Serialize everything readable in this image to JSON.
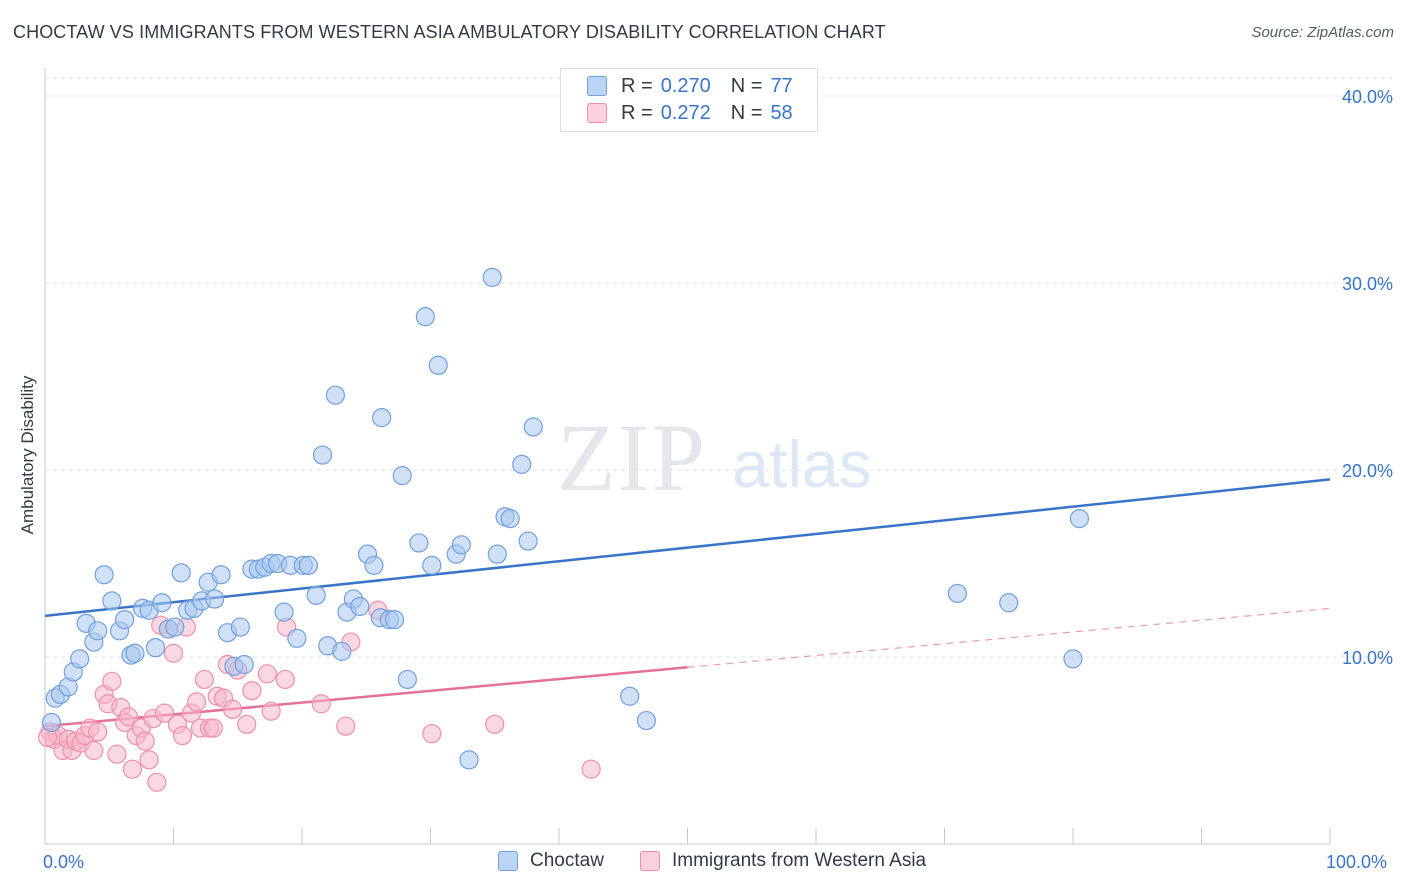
{
  "title": "CHOCTAW VS IMMIGRANTS FROM WESTERN ASIA AMBULATORY DISABILITY CORRELATION CHART",
  "source": "Source: ZipAtlas.com",
  "watermark": {
    "zip": "ZIP",
    "atlas": "atlas"
  },
  "legend": [
    {
      "r_label": "R =",
      "r_value": "0.270",
      "n_label": "N =",
      "n_value": "77",
      "color": "#a9c8f0"
    },
    {
      "r_label": "R =",
      "r_value": "0.272",
      "n_label": "N =",
      "n_value": "58",
      "color": "#f6b8c9"
    }
  ],
  "bottom_legend": [
    "Choctaw",
    "Immigrants from Western Asia"
  ],
  "x_axis": {
    "min_label": "0.0%",
    "max_label": "100.0%"
  },
  "chart_data": {
    "type": "scatter",
    "ylabel": "Ambulatory Disability",
    "xlim": [
      0,
      100
    ],
    "ylim": [
      0,
      42
    ],
    "y_ticks": [
      10,
      20,
      30,
      40
    ],
    "y_tick_labels": [
      "10.0%",
      "20.0%",
      "30.0%",
      "40.0%"
    ],
    "grid": true,
    "legend_position": "top-center",
    "series": [
      {
        "name": "Choctaw",
        "color": "#6fa0e0",
        "fill": "#a9c8f0",
        "line_color": "#3874c8",
        "trend": {
          "x": [
            0,
            100
          ],
          "y": [
            12.2,
            19.5
          ],
          "dashed_from": null
        },
        "points": [
          [
            0.5,
            6.5
          ],
          [
            0.8,
            7.8
          ],
          [
            1.2,
            8.0
          ],
          [
            1.8,
            8.4
          ],
          [
            2.2,
            9.2
          ],
          [
            2.7,
            9.9
          ],
          [
            3.2,
            11.8
          ],
          [
            3.8,
            10.8
          ],
          [
            4.1,
            11.4
          ],
          [
            4.6,
            14.4
          ],
          [
            5.2,
            13.0
          ],
          [
            5.8,
            11.4
          ],
          [
            6.2,
            12.0
          ],
          [
            6.7,
            10.1
          ],
          [
            7.0,
            10.2
          ],
          [
            7.6,
            12.6
          ],
          [
            8.1,
            12.5
          ],
          [
            8.6,
            10.5
          ],
          [
            9.1,
            12.9
          ],
          [
            9.6,
            11.5
          ],
          [
            10.1,
            11.6
          ],
          [
            10.6,
            14.5
          ],
          [
            11.1,
            12.5
          ],
          [
            11.6,
            12.6
          ],
          [
            12.2,
            13.0
          ],
          [
            12.7,
            14.0
          ],
          [
            13.2,
            13.1
          ],
          [
            13.7,
            14.4
          ],
          [
            14.2,
            11.3
          ],
          [
            14.7,
            9.5
          ],
          [
            15.2,
            11.6
          ],
          [
            15.5,
            9.6
          ],
          [
            16.1,
            14.7
          ],
          [
            16.6,
            14.7
          ],
          [
            17.1,
            14.8
          ],
          [
            17.6,
            15.0
          ],
          [
            18.1,
            15.0
          ],
          [
            18.6,
            12.4
          ],
          [
            19.1,
            14.9
          ],
          [
            19.6,
            11.0
          ],
          [
            20.1,
            14.9
          ],
          [
            20.5,
            14.9
          ],
          [
            21.1,
            13.3
          ],
          [
            21.6,
            20.8
          ],
          [
            22.0,
            10.6
          ],
          [
            22.6,
            24.0
          ],
          [
            23.1,
            10.3
          ],
          [
            23.5,
            12.4
          ],
          [
            24.0,
            13.1
          ],
          [
            24.5,
            12.7
          ],
          [
            25.1,
            15.5
          ],
          [
            25.6,
            14.9
          ],
          [
            26.1,
            12.1
          ],
          [
            26.2,
            22.8
          ],
          [
            26.8,
            12.0
          ],
          [
            27.2,
            12.0
          ],
          [
            27.8,
            19.7
          ],
          [
            28.2,
            8.8
          ],
          [
            29.1,
            16.1
          ],
          [
            29.6,
            28.2
          ],
          [
            30.1,
            14.9
          ],
          [
            30.6,
            25.6
          ],
          [
            32.0,
            15.5
          ],
          [
            32.4,
            16.0
          ],
          [
            33.0,
            4.5
          ],
          [
            34.8,
            30.3
          ],
          [
            35.2,
            15.5
          ],
          [
            35.8,
            17.5
          ],
          [
            36.2,
            17.4
          ],
          [
            37.1,
            20.3
          ],
          [
            37.6,
            16.2
          ],
          [
            38.0,
            22.3
          ],
          [
            45.5,
            7.9
          ],
          [
            46.8,
            6.6
          ],
          [
            71.0,
            13.4
          ],
          [
            75.0,
            12.9
          ],
          [
            80.0,
            9.9
          ],
          [
            80.5,
            17.4
          ]
        ]
      },
      {
        "name": "Immigrants from Western Asia",
        "color": "#ef8fab",
        "fill": "#f6b8c9",
        "line_color": "#e5709a",
        "trend": {
          "x": [
            0,
            100
          ],
          "y": [
            6.3,
            12.6
          ],
          "solid_until": 50
        },
        "points": [
          [
            0.4,
            6.0
          ],
          [
            0.7,
            5.6
          ],
          [
            1.0,
            5.8
          ],
          [
            1.4,
            5.0
          ],
          [
            1.8,
            5.6
          ],
          [
            2.1,
            5.0
          ],
          [
            2.4,
            5.5
          ],
          [
            2.8,
            5.4
          ],
          [
            3.1,
            5.8
          ],
          [
            3.5,
            6.2
          ],
          [
            3.8,
            5.0
          ],
          [
            4.1,
            6.0
          ],
          [
            4.6,
            8.0
          ],
          [
            4.9,
            7.5
          ],
          [
            5.2,
            8.7
          ],
          [
            5.6,
            4.8
          ],
          [
            5.9,
            7.3
          ],
          [
            6.2,
            6.5
          ],
          [
            6.5,
            6.8
          ],
          [
            6.8,
            4.0
          ],
          [
            7.1,
            5.8
          ],
          [
            7.5,
            6.2
          ],
          [
            7.8,
            5.5
          ],
          [
            8.1,
            4.5
          ],
          [
            8.4,
            6.7
          ],
          [
            8.7,
            3.3
          ],
          [
            9.0,
            11.7
          ],
          [
            9.3,
            7.0
          ],
          [
            9.6,
            11.5
          ],
          [
            10.0,
            10.2
          ],
          [
            10.3,
            6.4
          ],
          [
            10.7,
            5.8
          ],
          [
            11.0,
            11.6
          ],
          [
            11.4,
            7.0
          ],
          [
            11.8,
            7.6
          ],
          [
            12.1,
            6.2
          ],
          [
            12.4,
            8.8
          ],
          [
            12.8,
            6.2
          ],
          [
            13.1,
            6.2
          ],
          [
            13.4,
            7.9
          ],
          [
            13.9,
            7.8
          ],
          [
            14.2,
            9.6
          ],
          [
            14.6,
            7.2
          ],
          [
            15.0,
            9.3
          ],
          [
            15.7,
            6.4
          ],
          [
            16.1,
            8.2
          ],
          [
            17.3,
            9.1
          ],
          [
            17.6,
            7.1
          ],
          [
            18.7,
            8.8
          ],
          [
            18.8,
            11.6
          ],
          [
            21.5,
            7.5
          ],
          [
            23.4,
            6.3
          ],
          [
            23.8,
            10.8
          ],
          [
            25.9,
            12.5
          ],
          [
            30.1,
            5.9
          ],
          [
            35.0,
            6.4
          ],
          [
            42.5,
            4.0
          ],
          [
            0.2,
            5.7
          ]
        ]
      }
    ]
  }
}
